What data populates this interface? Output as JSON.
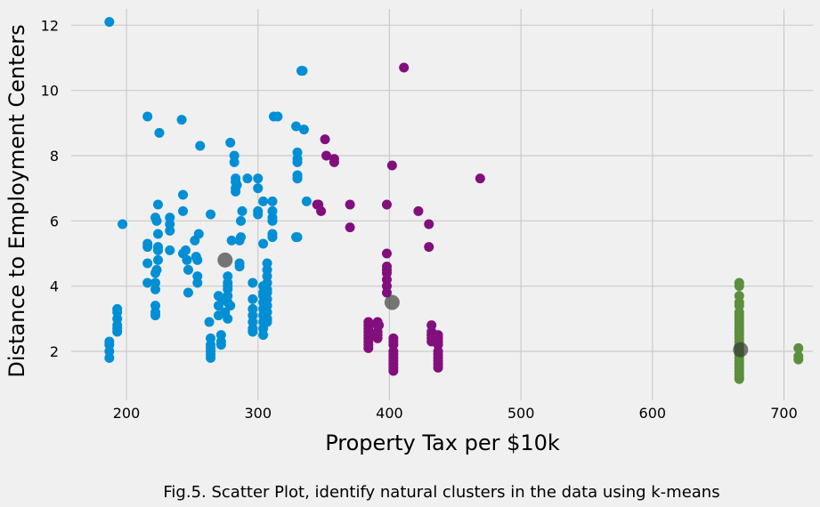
{
  "caption": "Fig.5. Scatter Plot, identify natural clusters in the data using k-means",
  "colors": {
    "background": "#f0f0f0",
    "grid": "#cbcbcb",
    "cluster_blue": "#008fd5",
    "cluster_purple": "#810f7c",
    "cluster_green": "#5a8f3e",
    "centroid": "#333333"
  },
  "chart_data": {
    "type": "scatter",
    "title": "",
    "xlabel": "Property Tax per $10k",
    "ylabel": "Distance to Employment Centers",
    "xlim": [
      158,
      722
    ],
    "ylim": [
      0.5,
      12.5
    ],
    "xticks": [
      200,
      300,
      400,
      500,
      600,
      700
    ],
    "yticks": [
      2,
      4,
      6,
      8,
      10,
      12
    ],
    "grid": true,
    "legend": "none",
    "series": [
      {
        "color": "#008fd5",
        "points": [
          [
            187,
            12.1
          ],
          [
            187,
            2.2
          ],
          [
            187,
            2.0
          ],
          [
            187,
            1.8
          ],
          [
            187,
            2.3
          ],
          [
            193,
            3.3
          ],
          [
            193,
            3.0
          ],
          [
            193,
            2.8
          ],
          [
            193,
            2.6
          ],
          [
            193,
            3.2
          ],
          [
            193,
            2.7
          ],
          [
            197,
            5.9
          ],
          [
            216,
            9.2
          ],
          [
            216,
            5.2
          ],
          [
            216,
            4.7
          ],
          [
            216,
            4.1
          ],
          [
            216,
            5.3
          ],
          [
            222,
            6.1
          ],
          [
            223,
            6.0
          ],
          [
            222,
            4.4
          ],
          [
            222,
            4.1
          ],
          [
            222,
            3.9
          ],
          [
            222,
            3.4
          ],
          [
            222,
            3.2
          ],
          [
            222,
            3.1
          ],
          [
            223,
            4.5
          ],
          [
            224,
            6.5
          ],
          [
            224,
            5.6
          ],
          [
            224,
            5.2
          ],
          [
            224,
            5.1
          ],
          [
            224,
            4.8
          ],
          [
            225,
            8.7
          ],
          [
            233,
            6.1
          ],
          [
            233,
            5.9
          ],
          [
            233,
            5.7
          ],
          [
            233,
            5.1
          ],
          [
            242,
            9.1
          ],
          [
            243,
            6.8
          ],
          [
            243,
            6.3
          ],
          [
            243,
            5.0
          ],
          [
            245,
            5.1
          ],
          [
            246,
            4.8
          ],
          [
            247,
            4.5
          ],
          [
            247,
            3.8
          ],
          [
            252,
            5.4
          ],
          [
            253,
            4.9
          ],
          [
            254,
            4.8
          ],
          [
            254,
            4.3
          ],
          [
            254,
            4.1
          ],
          [
            255,
            5.6
          ],
          [
            256,
            8.3
          ],
          [
            264,
            6.2
          ],
          [
            263,
            2.9
          ],
          [
            264,
            2.4
          ],
          [
            264,
            2.2
          ],
          [
            264,
            2.1
          ],
          [
            264,
            2.0
          ],
          [
            264,
            1.9
          ],
          [
            264,
            1.8
          ],
          [
            270,
            3.7
          ],
          [
            270,
            3.4
          ],
          [
            270,
            3.1
          ],
          [
            272,
            2.5
          ],
          [
            272,
            2.3
          ],
          [
            272,
            2.2
          ],
          [
            274,
            3.6
          ],
          [
            275,
            3.2
          ],
          [
            277,
            4.3
          ],
          [
            277,
            4.1
          ],
          [
            277,
            4.0
          ],
          [
            277,
            3.9
          ],
          [
            277,
            3.7
          ],
          [
            277,
            3.5
          ],
          [
            277,
            3.0
          ],
          [
            279,
            3.4
          ],
          [
            279,
            8.4
          ],
          [
            280,
            5.4
          ],
          [
            282,
            8.0
          ],
          [
            282,
            7.8
          ],
          [
            283,
            7.3
          ],
          [
            283,
            7.2
          ],
          [
            283,
            7.0
          ],
          [
            283,
            6.9
          ],
          [
            284,
            7.1
          ],
          [
            286,
            5.4
          ],
          [
            287,
            5.5
          ],
          [
            286,
            4.6
          ],
          [
            286,
            4.7
          ],
          [
            287,
            6.0
          ],
          [
            288,
            6.3
          ],
          [
            292,
            7.3
          ],
          [
            296,
            4.1
          ],
          [
            296,
            3.6
          ],
          [
            296,
            3.3
          ],
          [
            296,
            3.1
          ],
          [
            296,
            2.9
          ],
          [
            296,
            2.7
          ],
          [
            296,
            2.6
          ],
          [
            300,
            7.3
          ],
          [
            300,
            7.0
          ],
          [
            300,
            6.3
          ],
          [
            300,
            6.2
          ],
          [
            304,
            6.6
          ],
          [
            304,
            5.3
          ],
          [
            304,
            4.0
          ],
          [
            304,
            3.8
          ],
          [
            304,
            3.7
          ],
          [
            304,
            3.5
          ],
          [
            304,
            3.3
          ],
          [
            304,
            3.1
          ],
          [
            304,
            2.9
          ],
          [
            304,
            2.7
          ],
          [
            304,
            2.5
          ],
          [
            307,
            4.7
          ],
          [
            307,
            4.5
          ],
          [
            307,
            4.3
          ],
          [
            307,
            4.1
          ],
          [
            307,
            3.9
          ],
          [
            307,
            3.8
          ],
          [
            307,
            3.6
          ],
          [
            307,
            3.4
          ],
          [
            307,
            3.2
          ],
          [
            307,
            3.0
          ],
          [
            307,
            2.9
          ],
          [
            311,
            6.6
          ],
          [
            311,
            6.3
          ],
          [
            311,
            6.1
          ],
          [
            311,
            6.0
          ],
          [
            311,
            5.6
          ],
          [
            311,
            5.5
          ],
          [
            312,
            9.2
          ],
          [
            315,
            9.2
          ],
          [
            329,
            8.9
          ],
          [
            330,
            8.1
          ],
          [
            330,
            7.9
          ],
          [
            330,
            7.8
          ],
          [
            330,
            7.4
          ],
          [
            330,
            7.3
          ],
          [
            330,
            7.3
          ],
          [
            330,
            5.5
          ],
          [
            329,
            5.5
          ],
          [
            333,
            10.6
          ],
          [
            334,
            10.6
          ],
          [
            335,
            8.8
          ],
          [
            337,
            6.6
          ]
        ]
      },
      {
        "color": "#810f7c",
        "points": [
          [
            345,
            6.5
          ],
          [
            346,
            6.5
          ],
          [
            348,
            6.3
          ],
          [
            351,
            8.5
          ],
          [
            352,
            8.0
          ],
          [
            358,
            7.8
          ],
          [
            358,
            7.9
          ],
          [
            370,
            6.5
          ],
          [
            370,
            5.8
          ],
          [
            384,
            2.9
          ],
          [
            384,
            2.8
          ],
          [
            384,
            2.7
          ],
          [
            384,
            2.5
          ],
          [
            384,
            2.4
          ],
          [
            384,
            2.3
          ],
          [
            384,
            2.2
          ],
          [
            384,
            2.1
          ],
          [
            384,
            2.6
          ],
          [
            391,
            2.9
          ],
          [
            391,
            2.8
          ],
          [
            391,
            2.6
          ],
          [
            391,
            2.5
          ],
          [
            391,
            2.4
          ],
          [
            392,
            2.8
          ],
          [
            398,
            6.5
          ],
          [
            398,
            5.0
          ],
          [
            398,
            4.6
          ],
          [
            398,
            4.5
          ],
          [
            398,
            4.4
          ],
          [
            398,
            4.2
          ],
          [
            398,
            4.0
          ],
          [
            398,
            3.8
          ],
          [
            402,
            7.7
          ],
          [
            403,
            2.4
          ],
          [
            403,
            2.3
          ],
          [
            403,
            2.2
          ],
          [
            403,
            2.0
          ],
          [
            403,
            1.9
          ],
          [
            403,
            1.8
          ],
          [
            403,
            1.7
          ],
          [
            403,
            1.6
          ],
          [
            403,
            1.5
          ],
          [
            403,
            1.4
          ],
          [
            411,
            10.7
          ],
          [
            422,
            6.3
          ],
          [
            430,
            5.9
          ],
          [
            430,
            5.2
          ],
          [
            432,
            2.8
          ],
          [
            432,
            2.6
          ],
          [
            432,
            2.5
          ],
          [
            432,
            2.4
          ],
          [
            432,
            2.3
          ],
          [
            437,
            2.5
          ],
          [
            437,
            2.4
          ],
          [
            437,
            2.3
          ],
          [
            437,
            2.2
          ],
          [
            437,
            2.0
          ],
          [
            437,
            1.9
          ],
          [
            437,
            1.8
          ],
          [
            437,
            1.7
          ],
          [
            437,
            1.6
          ],
          [
            437,
            1.5
          ],
          [
            469,
            7.3
          ]
        ]
      },
      {
        "color": "#5a8f3e",
        "points": [
          [
            666,
            4.1
          ],
          [
            666,
            4.0
          ],
          [
            666,
            3.7
          ],
          [
            666,
            3.5
          ],
          [
            666,
            3.4
          ],
          [
            666,
            3.2
          ],
          [
            666,
            3.1
          ],
          [
            666,
            3.0
          ],
          [
            666,
            2.9
          ],
          [
            666,
            2.8
          ],
          [
            666,
            2.7
          ],
          [
            666,
            2.6
          ],
          [
            666,
            2.5
          ],
          [
            666,
            2.4
          ],
          [
            666,
            2.3
          ],
          [
            666,
            2.2
          ],
          [
            666,
            2.1
          ],
          [
            666,
            2.0
          ],
          [
            666,
            1.9
          ],
          [
            666,
            1.8
          ],
          [
            666,
            1.7
          ],
          [
            666,
            1.6
          ],
          [
            666,
            1.5
          ],
          [
            666,
            1.4
          ],
          [
            666,
            1.3
          ],
          [
            666,
            1.2
          ],
          [
            666,
            1.15
          ],
          [
            711,
            2.1
          ],
          [
            711,
            1.85
          ],
          [
            711,
            1.75
          ]
        ]
      }
    ],
    "centroids": [
      [
        275,
        4.8
      ],
      [
        402,
        3.5
      ],
      [
        667,
        2.05
      ]
    ]
  }
}
